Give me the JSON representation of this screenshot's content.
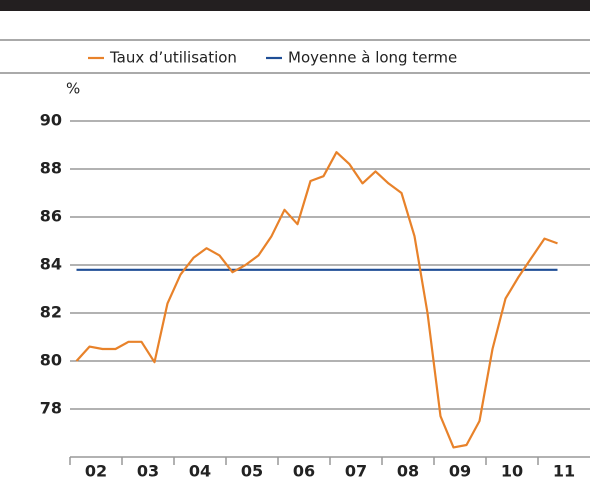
{
  "chart_data": {
    "type": "line",
    "y_unit": "%",
    "series": [
      {
        "name": "Taux d’utilisation",
        "color": "#e8822a",
        "x": [
          2002.125,
          2002.375,
          2002.625,
          2002.875,
          2003.125,
          2003.375,
          2003.625,
          2003.875,
          2004.125,
          2004.375,
          2004.625,
          2004.875,
          2005.125,
          2005.375,
          2005.625,
          2005.875,
          2006.125,
          2006.375,
          2006.625,
          2006.875,
          2007.125,
          2007.375,
          2007.625,
          2007.875,
          2008.125,
          2008.375,
          2008.625,
          2008.875,
          2009.125,
          2009.375,
          2009.625,
          2009.875,
          2010.125,
          2010.375,
          2010.625,
          2010.875,
          2011.125,
          2011.375
        ],
        "values": [
          80.0,
          80.6,
          80.5,
          80.5,
          80.8,
          80.8,
          79.95,
          82.4,
          83.6,
          84.3,
          84.7,
          84.4,
          83.7,
          84.0,
          84.4,
          85.2,
          86.3,
          85.7,
          87.5,
          87.7,
          88.7,
          88.2,
          87.4,
          87.9,
          87.4,
          87.0,
          85.2,
          82.0,
          77.7,
          76.4,
          76.5,
          77.5,
          80.5,
          82.6,
          83.5,
          84.3,
          85.1,
          84.9
        ]
      },
      {
        "name": "Moyenne à long terme",
        "color": "#1f4e96",
        "x": [
          2002.125,
          2011.375
        ],
        "values": [
          83.8,
          83.8
        ]
      }
    ],
    "xlim": [
      2002,
      2012
    ],
    "xticks": [
      {
        "value": 2002.5,
        "label": "02"
      },
      {
        "value": 2003.5,
        "label": "03"
      },
      {
        "value": 2004.5,
        "label": "04"
      },
      {
        "value": 2005.5,
        "label": "05"
      },
      {
        "value": 2006.5,
        "label": "06"
      },
      {
        "value": 2007.5,
        "label": "07"
      },
      {
        "value": 2008.5,
        "label": "08"
      },
      {
        "value": 2009.5,
        "label": "09"
      },
      {
        "value": 2010.5,
        "label": "10"
      },
      {
        "value": 2011.5,
        "label": "11"
      }
    ],
    "ylim": [
      76,
      90
    ],
    "yticks": [
      78,
      80,
      82,
      84,
      86,
      88,
      90
    ],
    "grid": true
  }
}
